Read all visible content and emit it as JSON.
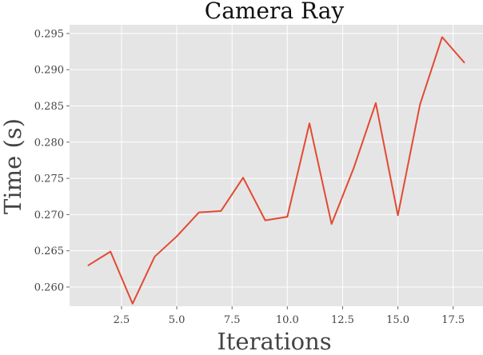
{
  "chart_data": {
    "type": "line",
    "title": "Camera Ray",
    "xlabel": "Iterations",
    "ylabel": "Time (s)",
    "xlim": [
      0.15,
      18.85
    ],
    "ylim": [
      0.25735,
      0.2962
    ],
    "xticks": [
      2.5,
      5.0,
      7.5,
      10.0,
      12.5,
      15.0,
      17.5
    ],
    "xtick_labels": [
      "2.5",
      "5.0",
      "7.5",
      "10.0",
      "12.5",
      "15.0",
      "17.5"
    ],
    "yticks": [
      0.26,
      0.265,
      0.27,
      0.275,
      0.28,
      0.285,
      0.29,
      0.295
    ],
    "ytick_labels": [
      "0.260",
      "0.265",
      "0.270",
      "0.275",
      "0.280",
      "0.285",
      "0.290",
      "0.295"
    ],
    "grid": true,
    "series": [
      {
        "color": "#e24a33",
        "x": [
          1,
          2,
          3,
          4,
          5,
          6,
          7,
          8,
          9,
          10,
          11,
          12,
          13,
          14,
          15,
          16,
          17,
          18
        ],
        "y": [
          0.263,
          0.2649,
          0.2577,
          0.2642,
          0.267,
          0.2703,
          0.2705,
          0.2751,
          0.2692,
          0.2697,
          0.2826,
          0.2687,
          0.2764,
          0.2854,
          0.2699,
          0.2852,
          0.2945,
          0.291
        ]
      }
    ]
  }
}
